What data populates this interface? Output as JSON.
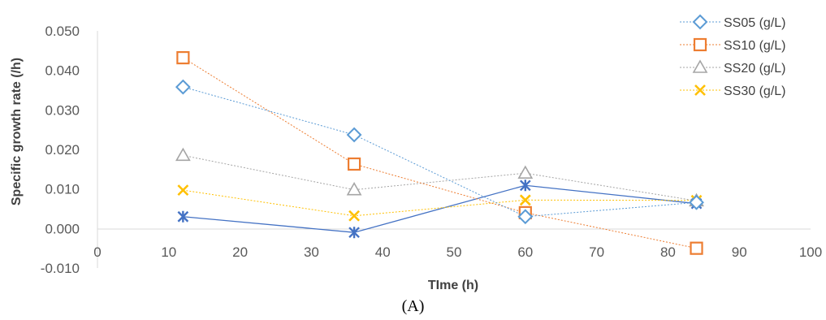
{
  "chart_data": {
    "type": "line",
    "xlabel": "TIme (h)",
    "ylabel": "Specific growth rate (/h)",
    "xlim": [
      0,
      100
    ],
    "ylim": [
      -0.01,
      0.05
    ],
    "xticks": [
      "0",
      "10",
      "20",
      "30",
      "40",
      "50",
      "60",
      "70",
      "80",
      "90",
      "100"
    ],
    "yticks": [
      "-0.010",
      "0.000",
      "0.010",
      "0.020",
      "0.030",
      "0.040",
      "0.050"
    ],
    "grid": false,
    "legend_position": "top-right",
    "series": [
      {
        "name": "SS05 (g/L)",
        "color": "#5B9BD5",
        "marker": "diamond",
        "x": [
          12,
          36,
          60,
          84
        ],
        "y": [
          0.0358,
          0.0237,
          0.003,
          0.0066
        ]
      },
      {
        "name": "SS10 (g/L)",
        "color": "#ED7D31",
        "marker": "square",
        "x": [
          12,
          36,
          60,
          84
        ],
        "y": [
          0.0432,
          0.0163,
          0.004,
          -0.005
        ]
      },
      {
        "name": "SS20 (g/L)",
        "color": "#A5A5A5",
        "marker": "triangle",
        "x": [
          12,
          36,
          60,
          84
        ],
        "y": [
          0.0185,
          0.0098,
          0.014,
          0.007
        ]
      },
      {
        "name": "SS30 (g/L)",
        "color": "#FFC000",
        "marker": "x",
        "x": [
          12,
          36,
          60,
          84
        ],
        "y": [
          0.0097,
          0.0032,
          0.0072,
          0.0071
        ]
      },
      {
        "name": "",
        "color": "#4472C4",
        "marker": "star",
        "x": [
          12,
          36,
          60,
          84
        ],
        "y": [
          0.003,
          -0.001,
          0.0109,
          0.0063
        ]
      }
    ]
  },
  "panel_label": "(A)"
}
